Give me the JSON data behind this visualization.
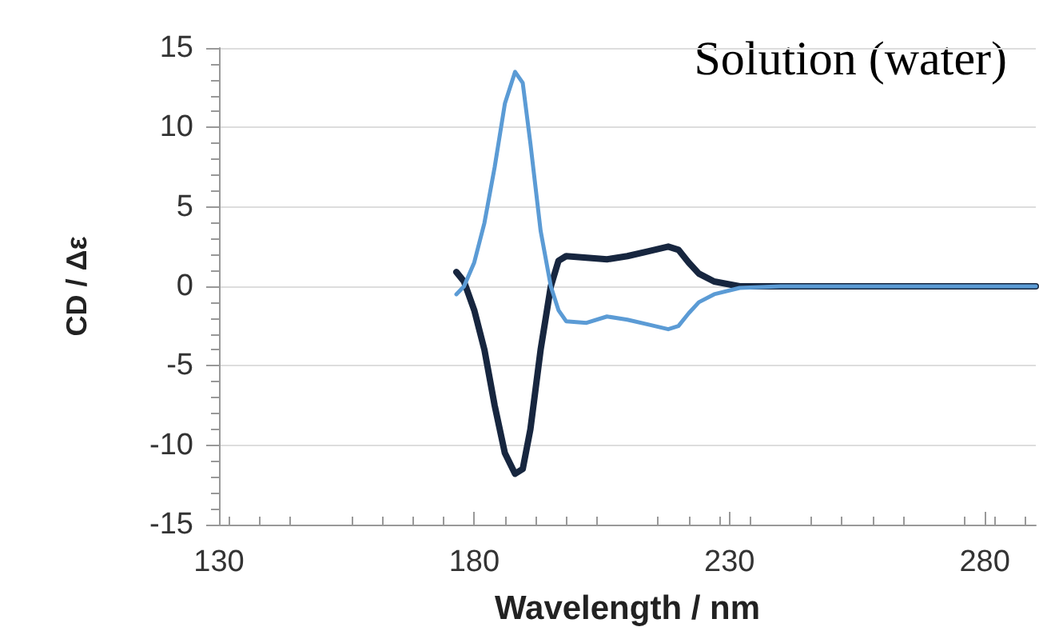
{
  "chart_data": {
    "type": "line",
    "xlabel": "Wavelength / nm",
    "ylabel": "CD / Δε",
    "annotations": [
      "Solution (water)"
    ],
    "xlim": [
      130,
      290
    ],
    "xticks": [
      130,
      180,
      230,
      280
    ],
    "ylim": [
      -15,
      15
    ],
    "yticks": [
      -15,
      -10,
      -5,
      0,
      5,
      10,
      15
    ],
    "grid": "y",
    "marker": "none",
    "line_style": "solid",
    "series": [
      {
        "color": "#17263f",
        "x": [
          176.5,
          178,
          180,
          182,
          184,
          186,
          188,
          189.5,
          191,
          193,
          195,
          196.5,
          198,
          202,
          206,
          210,
          214,
          218,
          220,
          222,
          224,
          227,
          232,
          240,
          260,
          290
        ],
        "values": [
          0.9,
          0.3,
          -1.5,
          -4,
          -7.5,
          -10.5,
          -11.8,
          -11.5,
          -9,
          -4,
          0,
          1.6,
          1.9,
          1.8,
          1.7,
          1.9,
          2.2,
          2.5,
          2.3,
          1.5,
          0.8,
          0.3,
          0,
          0,
          0,
          0
        ]
      },
      {
        "color": "#5b9bd5",
        "x": [
          176.5,
          178,
          180,
          182,
          184,
          186,
          188,
          189.5,
          191,
          193,
          195,
          196.5,
          198,
          202,
          206,
          210,
          214,
          218,
          220,
          222,
          224,
          227,
          232,
          240,
          260,
          290
        ],
        "values": [
          -0.5,
          0,
          1.5,
          4,
          7.5,
          11.5,
          13.5,
          12.8,
          9,
          3.5,
          0,
          -1.5,
          -2.2,
          -2.3,
          -1.9,
          -2.1,
          -2.4,
          -2.7,
          -2.5,
          -1.7,
          -1,
          -0.5,
          -0.1,
          0,
          0,
          0
        ]
      }
    ]
  }
}
